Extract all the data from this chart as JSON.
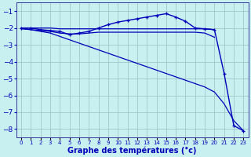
{
  "xlabel": "Graphe des températures (°c)",
  "ylim": [
    -8.5,
    -0.5
  ],
  "xlim": [
    -0.5,
    23.5
  ],
  "yticks": [
    -1,
    -2,
    -3,
    -4,
    -5,
    -6,
    -7,
    -8
  ],
  "background_color": "#c8f0f0",
  "grid_color": "#a0c8c8",
  "line_color": "#0000bb",
  "curve1_x": [
    0,
    1,
    2,
    3,
    4,
    5,
    6,
    7,
    8,
    9,
    10,
    11,
    12,
    13,
    14,
    15,
    16,
    17,
    18,
    19,
    20,
    21,
    22,
    23
  ],
  "curve1_y": [
    -2.0,
    -2.0,
    -2.1,
    -2.15,
    -2.2,
    -2.4,
    -2.3,
    -2.2,
    -2.0,
    -1.8,
    -1.65,
    -1.55,
    -1.45,
    -1.35,
    -1.25,
    -1.15,
    -1.35,
    -1.6,
    -2.0,
    -2.05,
    -2.1,
    -4.7,
    -7.8,
    -8.1
  ],
  "curve2_x": [
    0,
    1,
    2,
    3,
    4,
    5,
    6,
    7,
    8,
    9,
    10,
    11,
    12,
    13,
    14,
    15,
    16,
    17,
    18,
    19,
    20
  ],
  "curve2_y": [
    -2.0,
    -2.0,
    -2.0,
    -2.0,
    -2.05,
    -2.05,
    -2.05,
    -2.05,
    -2.05,
    -2.05,
    -2.05,
    -2.05,
    -2.05,
    -2.05,
    -2.05,
    -2.05,
    -2.05,
    -2.05,
    -2.05,
    -2.05,
    -2.1
  ],
  "curve3_x": [
    0,
    1,
    2,
    3,
    4,
    5,
    6,
    7,
    8,
    9,
    10,
    11,
    12,
    13,
    14,
    15,
    16,
    17,
    18,
    19,
    20
  ],
  "curve3_y": [
    -2.05,
    -2.1,
    -2.15,
    -2.2,
    -2.3,
    -2.35,
    -2.35,
    -2.3,
    -2.25,
    -2.25,
    -2.25,
    -2.25,
    -2.25,
    -2.25,
    -2.25,
    -2.25,
    -2.25,
    -2.25,
    -2.25,
    -2.3,
    -2.55
  ],
  "curve4_x": [
    0,
    1,
    2,
    3,
    4,
    5,
    6,
    7,
    8,
    9,
    10,
    11,
    12,
    13,
    14,
    15,
    16,
    17,
    18,
    19,
    20,
    21,
    22,
    23
  ],
  "curve4_y": [
    -2.0,
    -2.1,
    -2.2,
    -2.3,
    -2.5,
    -2.7,
    -2.9,
    -3.1,
    -3.3,
    -3.5,
    -3.7,
    -3.9,
    -4.1,
    -4.3,
    -4.5,
    -4.7,
    -4.9,
    -5.1,
    -5.3,
    -5.5,
    -5.8,
    -6.5,
    -7.5,
    -8.1
  ]
}
